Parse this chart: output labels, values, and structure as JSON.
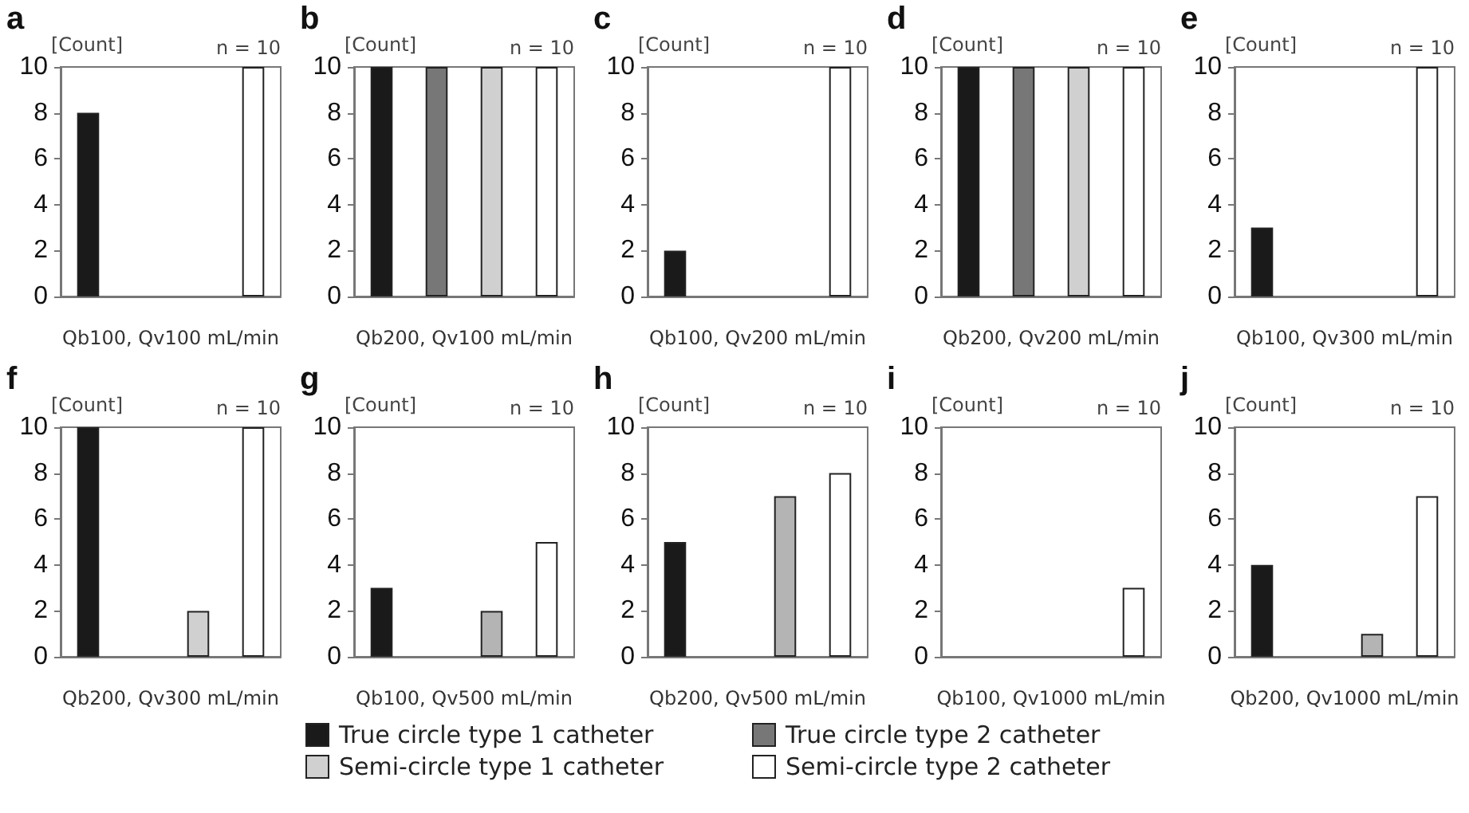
{
  "chart_data": [
    {
      "type": "bar",
      "title": "a",
      "xlabel": "Qb100, Qv100 mL/min",
      "ylabel": "[Count]",
      "annotations": [
        "n = 10"
      ],
      "categories": [
        null,
        null,
        null,
        null
      ],
      "ylim": [
        0,
        10
      ],
      "yticks": [
        0,
        2,
        4,
        6,
        8,
        10
      ],
      "series": [
        {
          "color": "#1a1a1a",
          "values": [
            8,
            null,
            null,
            null
          ]
        },
        {
          "color": "#777777",
          "values": [
            null,
            0,
            null,
            null
          ]
        },
        {
          "color": "#d0d0d0",
          "values": [
            null,
            null,
            0,
            null
          ]
        },
        {
          "color": "#ffffff",
          "values": [
            null,
            null,
            null,
            10
          ]
        }
      ]
    },
    {
      "type": "bar",
      "title": "b",
      "xlabel": "Qb200, Qv100 mL/min",
      "ylabel": "[Count]",
      "annotations": [
        "n = 10"
      ],
      "categories": [
        null,
        null,
        null,
        null
      ],
      "ylim": [
        0,
        10
      ],
      "yticks": [
        0,
        2,
        4,
        6,
        8,
        10
      ],
      "legend": "bottom",
      "series": [
        {
          "name": "True circle type 1 catheter",
          "color": "#1a1a1a",
          "values": [
            10,
            null,
            null,
            null
          ]
        },
        {
          "name": "True circle type 2 catheter",
          "color": "#777777",
          "values": [
            null,
            10,
            null,
            null
          ]
        },
        {
          "name": "Semi-circle type 1 catheter",
          "color": "#d0d0d0",
          "values": [
            null,
            null,
            10,
            null
          ]
        },
        {
          "name": "Semi-circle type 2 catheter",
          "color": "#ffffff",
          "values": [
            null,
            null,
            null,
            10
          ]
        }
      ]
    },
    {
      "type": "bar",
      "title": "c",
      "xlabel": "Qb100, Qv200 mL/min",
      "ylabel": "[Count]",
      "annotations": [
        "n = 10"
      ],
      "categories": [
        null,
        null,
        null,
        null
      ],
      "ylim": [
        0,
        10
      ],
      "yticks": [
        0,
        2,
        4,
        6,
        8,
        10
      ],
      "series": [
        {
          "color": "#1a1a1a",
          "values": [
            2,
            null,
            null,
            null
          ]
        },
        {
          "color": "#777777",
          "values": [
            null,
            0,
            null,
            null
          ]
        },
        {
          "color": "#d0d0d0",
          "values": [
            null,
            null,
            0,
            null
          ]
        },
        {
          "color": "#ffffff",
          "values": [
            null,
            null,
            null,
            10
          ]
        }
      ]
    },
    {
      "type": "bar",
      "title": "d",
      "xlabel": "Qb200, Qv200 mL/min",
      "ylabel": "[Count]",
      "annotations": [
        "n = 10"
      ],
      "categories": [
        null,
        null,
        null,
        null
      ],
      "ylim": [
        0,
        10
      ],
      "yticks": [
        0,
        2,
        4,
        6,
        8,
        10
      ],
      "series": [
        {
          "color": "#1a1a1a",
          "values": [
            10,
            null,
            null,
            null
          ]
        },
        {
          "color": "#777777",
          "values": [
            null,
            10,
            null,
            null
          ]
        },
        {
          "color": "#d0d0d0",
          "values": [
            null,
            null,
            10,
            null
          ]
        },
        {
          "color": "#ffffff",
          "values": [
            null,
            null,
            null,
            10
          ]
        }
      ]
    },
    {
      "type": "bar",
      "title": "e",
      "xlabel": "Qb100, Qv300 mL/min",
      "ylabel": "[Count]",
      "annotations": [
        "n = 10"
      ],
      "categories": [
        null,
        null,
        null,
        null
      ],
      "ylim": [
        0,
        10
      ],
      "yticks": [
        0,
        2,
        4,
        6,
        8,
        10
      ],
      "series": [
        {
          "color": "#1a1a1a",
          "values": [
            3,
            null,
            null,
            null
          ]
        },
        {
          "color": "#777777",
          "values": [
            null,
            0,
            null,
            null
          ]
        },
        {
          "color": "#d0d0d0",
          "values": [
            null,
            null,
            0,
            null
          ]
        },
        {
          "color": "#ffffff",
          "values": [
            null,
            null,
            null,
            10
          ]
        }
      ]
    },
    {
      "type": "bar",
      "title": "f",
      "xlabel": "Qb200, Qv300 mL/min",
      "ylabel": "[Count]",
      "annotations": [
        "n = 10"
      ],
      "categories": [
        null,
        null,
        null,
        null
      ],
      "ylim": [
        0,
        10
      ],
      "yticks": [
        0,
        2,
        4,
        6,
        8,
        10
      ],
      "series": [
        {
          "color": "#1a1a1a",
          "values": [
            10,
            null,
            null,
            null
          ]
        },
        {
          "color": "#777777",
          "values": [
            null,
            0,
            null,
            null
          ]
        },
        {
          "color": "#d0d0d0",
          "values": [
            null,
            null,
            2,
            null
          ]
        },
        {
          "color": "#ffffff",
          "values": [
            null,
            null,
            null,
            10
          ]
        }
      ]
    },
    {
      "type": "bar",
      "title": "g",
      "xlabel": "Qb100, Qv500 mL/min",
      "ylabel": "[Count]",
      "annotations": [
        "n = 10"
      ],
      "categories": [
        null,
        null,
        null,
        null
      ],
      "ylim": [
        0,
        10
      ],
      "yticks": [
        0,
        2,
        4,
        6,
        8,
        10
      ],
      "series": [
        {
          "color": "#1a1a1a",
          "values": [
            3,
            null,
            null,
            null
          ]
        },
        {
          "color": "#777777",
          "values": [
            null,
            0,
            null,
            null
          ]
        },
        {
          "color": "#b4b4b4",
          "values": [
            null,
            null,
            2,
            null
          ]
        },
        {
          "color": "#ffffff",
          "values": [
            null,
            null,
            null,
            5
          ]
        }
      ]
    },
    {
      "type": "bar",
      "title": "h",
      "xlabel": "Qb200, Qv500 mL/min",
      "ylabel": "[Count]",
      "annotations": [
        "n = 10"
      ],
      "categories": [
        null,
        null,
        null,
        null
      ],
      "ylim": [
        0,
        10
      ],
      "yticks": [
        0,
        2,
        4,
        6,
        8,
        10
      ],
      "series": [
        {
          "color": "#1a1a1a",
          "values": [
            5,
            null,
            null,
            null
          ]
        },
        {
          "color": "#777777",
          "values": [
            null,
            0,
            null,
            null
          ]
        },
        {
          "color": "#b4b4b4",
          "values": [
            null,
            null,
            7,
            null
          ]
        },
        {
          "color": "#ffffff",
          "values": [
            null,
            null,
            null,
            8
          ]
        }
      ]
    },
    {
      "type": "bar",
      "title": "i",
      "xlabel": "Qb100, Qv1000 mL/min",
      "ylabel": "[Count]",
      "annotations": [
        "n = 10"
      ],
      "categories": [
        null,
        null,
        null,
        null
      ],
      "ylim": [
        0,
        10
      ],
      "yticks": [
        0,
        2,
        4,
        6,
        8,
        10
      ],
      "series": [
        {
          "color": "#1a1a1a",
          "values": [
            0,
            null,
            null,
            null
          ]
        },
        {
          "color": "#777777",
          "values": [
            null,
            0,
            null,
            null
          ]
        },
        {
          "color": "#b4b4b4",
          "values": [
            null,
            null,
            0,
            null
          ]
        },
        {
          "color": "#ffffff",
          "values": [
            null,
            null,
            null,
            3
          ]
        }
      ]
    },
    {
      "type": "bar",
      "title": "j",
      "xlabel": "Qb200, Qv1000 mL/min",
      "ylabel": "[Count]",
      "annotations": [
        "n = 10"
      ],
      "categories": [
        null,
        null,
        null,
        null
      ],
      "ylim": [
        0,
        10
      ],
      "yticks": [
        0,
        2,
        4,
        6,
        8,
        10
      ],
      "series": [
        {
          "color": "#1a1a1a",
          "values": [
            4,
            null,
            null,
            null
          ]
        },
        {
          "color": "#777777",
          "values": [
            null,
            0,
            null,
            null
          ]
        },
        {
          "color": "#b4b4b4",
          "values": [
            null,
            null,
            1,
            null
          ]
        },
        {
          "color": "#ffffff",
          "values": [
            null,
            null,
            null,
            7
          ]
        }
      ]
    }
  ]
}
